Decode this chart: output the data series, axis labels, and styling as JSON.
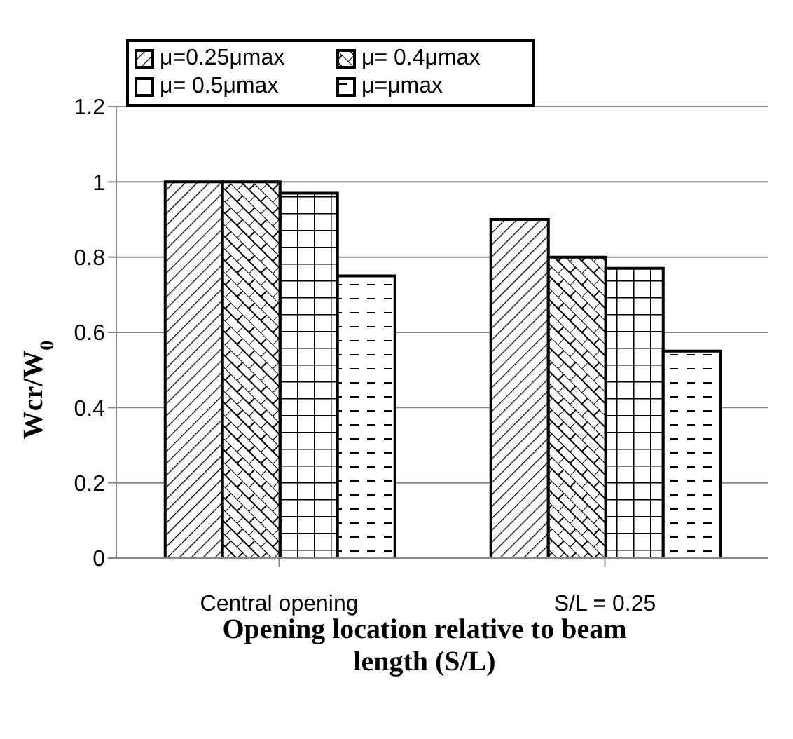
{
  "chart_data": {
    "type": "bar",
    "xlabel": "Opening location relative to beam length (S/L)",
    "ylabel": "Wcr/W$_{0}$",
    "categories": [
      "Central opening",
      "S/L = 0.25"
    ],
    "series": [
      {
        "name": "μ=0.25μmax",
        "color": "#000000",
        "values": [
          1.0,
          0.9
        ]
      },
      {
        "name": "μ= 0.4μmax",
        "color": "#000000",
        "values": [
          1.0,
          0.8
        ]
      },
      {
        "name": "μ= 0.5μmax",
        "color": "#000000",
        "values": [
          0.97,
          0.77
        ]
      },
      {
        "name": "μ=μmax",
        "color": "#000000",
        "values": [
          0.75,
          0.55
        ]
      }
    ],
    "ylim": [
      0,
      1.2
    ],
    "yticks": [
      0,
      0.2,
      0.4,
      0.6,
      0.8,
      1,
      1.2
    ],
    "grid": "y",
    "legend": "top left"
  }
}
